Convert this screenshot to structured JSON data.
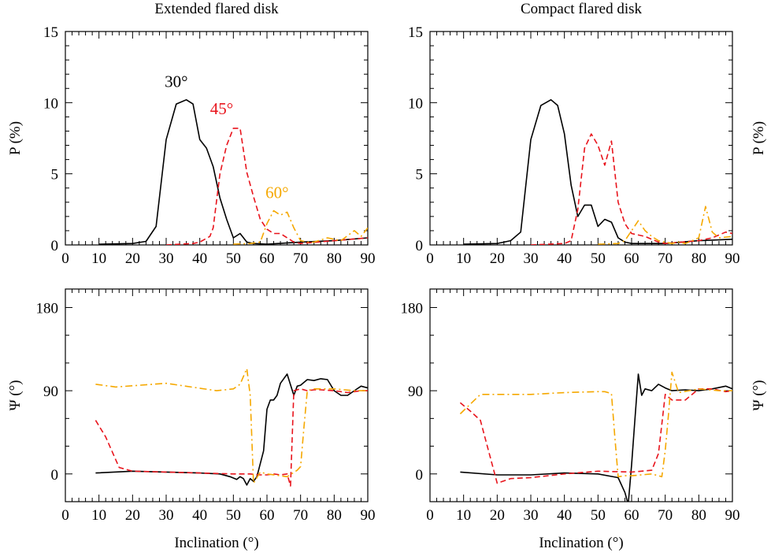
{
  "chart_data": [
    {
      "type": "line",
      "title": "Extended flared disk",
      "xlabel": "",
      "ylabel": "P (%)",
      "xlim": [
        0,
        90
      ],
      "ylim": [
        0,
        15
      ],
      "xticks": [
        "0",
        "10",
        "20",
        "30",
        "40",
        "50",
        "60",
        "70",
        "80",
        "90"
      ],
      "yticks": [
        "0",
        "5",
        "10",
        "15"
      ],
      "annotations": [
        {
          "text": "30°",
          "color": "#000000"
        },
        {
          "text": "45°",
          "color": "#e8141c"
        },
        {
          "text": "60°",
          "color": "#f5a800"
        }
      ],
      "series": [
        {
          "name": "30°",
          "color": "#000000",
          "style": "solid",
          "x": [
            10,
            20,
            24,
            27,
            30,
            33,
            36,
            38,
            40,
            42,
            44,
            46,
            48,
            50,
            52,
            54,
            56,
            60,
            70,
            80,
            90
          ],
          "y": [
            0.05,
            0.1,
            0.25,
            1.3,
            7.4,
            9.9,
            10.2,
            9.9,
            7.4,
            6.8,
            5.5,
            3.3,
            1.8,
            0.5,
            0.8,
            0.2,
            0.1,
            0.05,
            0.2,
            0.3,
            0.5
          ]
        },
        {
          "name": "45°",
          "color": "#e8141c",
          "style": "dashed",
          "x": [
            30,
            38,
            40,
            43,
            44,
            46,
            48,
            50,
            52,
            54,
            56,
            58,
            60,
            62,
            64,
            66,
            68,
            70,
            80,
            90
          ],
          "y": [
            0.0,
            0.1,
            0.2,
            0.6,
            1.2,
            5.0,
            7.0,
            8.2,
            8.2,
            5.1,
            3.4,
            1.8,
            1.1,
            0.8,
            0.8,
            0.5,
            0.2,
            0.1,
            0.3,
            0.5
          ]
        },
        {
          "name": "60°",
          "color": "#f5a800",
          "style": "dashdot",
          "x": [
            50,
            55,
            58,
            60,
            62,
            64,
            66,
            68,
            70,
            72,
            74,
            78,
            82,
            86,
            88,
            90
          ],
          "y": [
            0.05,
            0.1,
            0.2,
            1.5,
            2.4,
            2.1,
            2.3,
            1.2,
            0.3,
            0.2,
            0.2,
            0.5,
            0.3,
            1.0,
            0.6,
            1.2
          ]
        }
      ]
    },
    {
      "type": "line",
      "title": "Compact flared disk",
      "xlabel": "",
      "ylabel": "P (%)",
      "xlim": [
        0,
        90
      ],
      "ylim": [
        0,
        15
      ],
      "xticks": [
        "0",
        "10",
        "20",
        "30",
        "40",
        "50",
        "60",
        "70",
        "80",
        "90"
      ],
      "yticks": [
        "0",
        "5",
        "10",
        "15"
      ],
      "series": [
        {
          "name": "30°",
          "color": "#000000",
          "style": "solid",
          "x": [
            10,
            20,
            24,
            27,
            30,
            33,
            36,
            38,
            40,
            42,
            44,
            46,
            48,
            50,
            52,
            54,
            56,
            58,
            60,
            70,
            80,
            90
          ],
          "y": [
            0.05,
            0.1,
            0.3,
            0.9,
            7.4,
            9.8,
            10.2,
            9.8,
            7.8,
            4.2,
            2.0,
            2.8,
            2.8,
            1.3,
            1.8,
            1.6,
            0.5,
            0.2,
            0.1,
            0.1,
            0.3,
            0.4
          ]
        },
        {
          "name": "45°",
          "color": "#e8141c",
          "style": "dashed",
          "x": [
            30,
            40,
            42,
            44,
            46,
            48,
            50,
            52,
            54,
            56,
            58,
            60,
            62,
            64,
            66,
            68,
            70,
            80,
            84,
            88,
            90
          ],
          "y": [
            0.0,
            0.1,
            0.3,
            2.5,
            6.8,
            7.8,
            7.0,
            5.6,
            7.3,
            3.0,
            1.5,
            0.8,
            0.7,
            0.6,
            0.4,
            0.2,
            0.1,
            0.3,
            0.5,
            0.9,
            0.8
          ]
        },
        {
          "name": "60°",
          "color": "#f5a800",
          "style": "dashdot",
          "x": [
            50,
            56,
            58,
            60,
            62,
            64,
            66,
            68,
            70,
            72,
            74,
            76,
            78,
            80,
            82,
            84,
            86,
            90
          ],
          "y": [
            0.05,
            0.1,
            0.3,
            1.0,
            1.7,
            1.0,
            0.6,
            0.3,
            0.2,
            0.1,
            0.2,
            0.1,
            0.3,
            0.5,
            2.7,
            0.9,
            0.5,
            0.6
          ]
        }
      ]
    },
    {
      "type": "line",
      "title": "",
      "xlabel": "Inclination (°)",
      "ylabel": "Ψ (°)",
      "xlim": [
        0,
        90
      ],
      "ylim": [
        -30,
        200
      ],
      "xticks": [
        "0",
        "10",
        "20",
        "30",
        "40",
        "50",
        "60",
        "70",
        "80",
        "90"
      ],
      "yticks": [
        "0",
        "90",
        "180"
      ],
      "series": [
        {
          "name": "30°",
          "color": "#000000",
          "style": "solid",
          "x": [
            9,
            20,
            30,
            40,
            46,
            49,
            51,
            52,
            53,
            54,
            55,
            56,
            57,
            59,
            60,
            61,
            62,
            63,
            64,
            66,
            68,
            69,
            70,
            72,
            74,
            76,
            78,
            80,
            82,
            84,
            86,
            88,
            90
          ],
          "y": [
            1,
            3,
            2,
            1,
            0,
            -3,
            -6,
            -3,
            -5,
            -12,
            -5,
            -8,
            -3,
            25,
            70,
            80,
            80,
            85,
            98,
            108,
            85,
            95,
            96,
            102,
            101,
            103,
            102,
            90,
            85,
            85,
            90,
            95,
            93
          ]
        },
        {
          "name": "45°",
          "color": "#e8141c",
          "style": "dashed",
          "x": [
            9,
            12,
            16,
            20,
            30,
            40,
            50,
            55,
            58,
            60,
            62,
            64,
            66,
            67,
            68,
            70,
            72,
            74,
            76,
            80,
            84,
            88,
            90
          ],
          "y": [
            58,
            40,
            7,
            3,
            2,
            1,
            0,
            0,
            -1,
            -1,
            0,
            -1,
            0,
            -13,
            90,
            92,
            90,
            91,
            91,
            90,
            88,
            90,
            90
          ]
        },
        {
          "name": "60°",
          "color": "#f5a800",
          "style": "dashdot",
          "x": [
            9,
            15,
            30,
            45,
            50,
            52,
            54,
            55,
            56,
            58,
            60,
            66,
            69,
            70,
            71,
            72,
            74,
            80,
            86,
            90
          ],
          "y": [
            97,
            94,
            98,
            90,
            92,
            97,
            114,
            85,
            -10,
            2,
            0,
            -3,
            4,
            8,
            50,
            90,
            92,
            92,
            90,
            90
          ]
        }
      ]
    },
    {
      "type": "line",
      "title": "",
      "xlabel": "Inclination (°)",
      "ylabel": "Ψ (°)",
      "xlim": [
        0,
        90
      ],
      "ylim": [
        -30,
        200
      ],
      "xticks": [
        "0",
        "10",
        "20",
        "30",
        "40",
        "50",
        "60",
        "70",
        "80",
        "90"
      ],
      "yticks": [
        "0",
        "90",
        "180"
      ],
      "series": [
        {
          "name": "30°",
          "color": "#000000",
          "style": "solid",
          "x": [
            9,
            20,
            30,
            40,
            50,
            56,
            58,
            59,
            60,
            61,
            62,
            63,
            64,
            66,
            68,
            70,
            72,
            76,
            80,
            84,
            88,
            90
          ],
          "y": [
            2,
            -1,
            -1,
            1,
            0,
            -4,
            -20,
            -33,
            10,
            60,
            108,
            85,
            92,
            90,
            97,
            93,
            90,
            91,
            90,
            92,
            95,
            92
          ]
        },
        {
          "name": "45°",
          "color": "#e8141c",
          "style": "dashed",
          "x": [
            9,
            12,
            15,
            20,
            24,
            30,
            40,
            50,
            60,
            66,
            68,
            70,
            72,
            74,
            76,
            80,
            84,
            88,
            90
          ],
          "y": [
            77,
            68,
            58,
            -10,
            -5,
            -4,
            0,
            3,
            2,
            4,
            22,
            86,
            80,
            80,
            80,
            92,
            92,
            89,
            90
          ]
        },
        {
          "name": "60°",
          "color": "#f5a800",
          "style": "dashdot",
          "x": [
            9,
            15,
            20,
            30,
            40,
            50,
            52,
            54,
            55,
            56,
            58,
            60,
            66,
            69,
            70,
            71,
            72,
            74,
            80,
            86,
            90
          ],
          "y": [
            65,
            86,
            86,
            86,
            88,
            89,
            89,
            87,
            40,
            -3,
            -2,
            -2,
            0,
            -3,
            25,
            65,
            110,
            88,
            92,
            90,
            90
          ]
        }
      ]
    }
  ]
}
